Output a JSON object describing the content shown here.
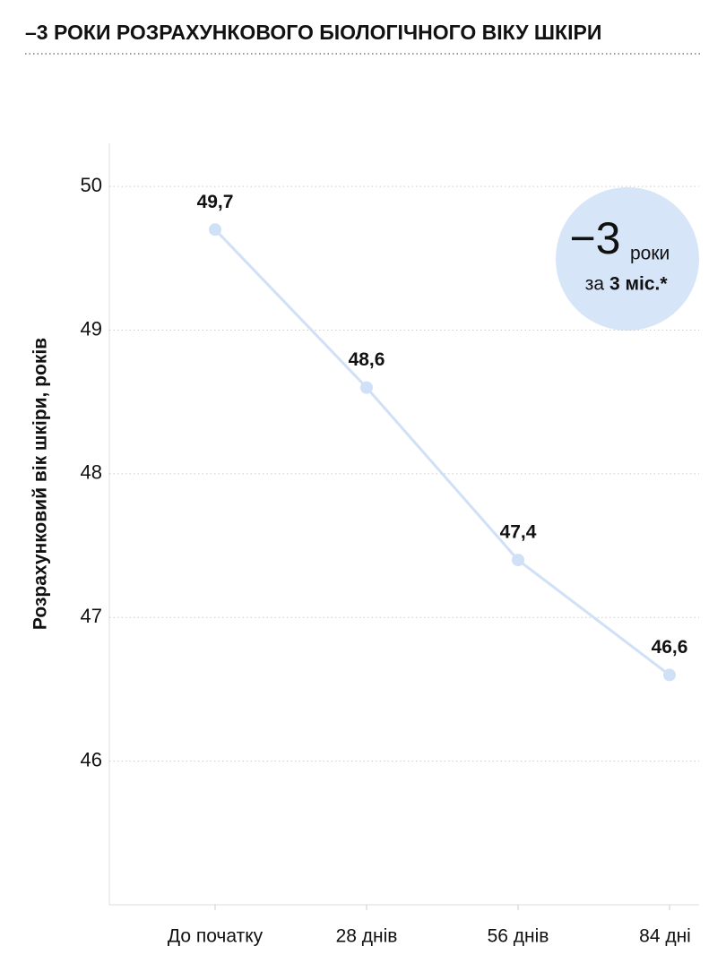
{
  "chart_data": {
    "type": "line",
    "title": "–3 РОКИ РОЗРАХУНКОВОГО БІОЛОГІЧНОГО ВІКУ ШКІРИ",
    "y_label": "Розрахунковий вік шкіри, років",
    "categories": [
      "До початку",
      "28 днів",
      "56 днів",
      "84 дні"
    ],
    "values": [
      49.7,
      48.6,
      47.4,
      46.6
    ],
    "value_labels": [
      "49,7",
      "48,6",
      "47,4",
      "46,6"
    ],
    "color": "#cfe0f7",
    "ylim": [
      45,
      50.3
    ],
    "yticks": [
      46,
      47,
      48,
      49,
      50
    ],
    "grid": true,
    "badge": {
      "big": "−3",
      "unit": "роки",
      "prefix": "за",
      "period": "3 міс.*"
    }
  }
}
